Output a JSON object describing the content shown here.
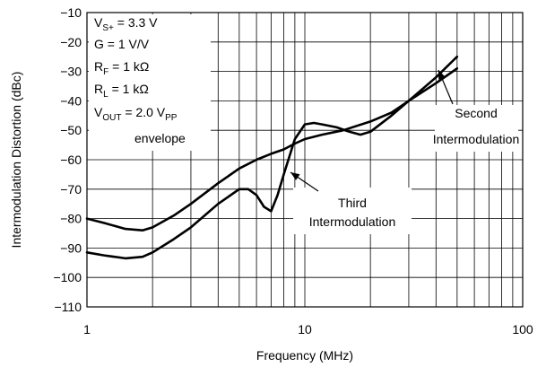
{
  "chart_data": {
    "type": "line",
    "xlabel": "Frequency (MHz)",
    "ylabel": "Intermodulation Distortion (dBc)",
    "x_scale": "log",
    "xlim": [
      1,
      100
    ],
    "ylim": [
      -110,
      -10
    ],
    "grid": true,
    "x_ticks": [
      1,
      10,
      100
    ],
    "y_ticks": [
      -10,
      -20,
      -30,
      -40,
      -50,
      -60,
      -70,
      -80,
      -90,
      -100,
      -110
    ],
    "conditions": [
      {
        "main": "V",
        "sub": "S+",
        "rest": " = 3.3 V"
      },
      {
        "main": "G = 1 V/V",
        "sub": "",
        "rest": ""
      },
      {
        "main": "R",
        "sub": "F",
        "rest": " = 1 kΩ"
      },
      {
        "main": "R",
        "sub": "L",
        "rest": " = 1 kΩ"
      },
      {
        "main": "V",
        "sub": "OUT",
        "rest": " = 2.0 V",
        "sub2": "PP"
      },
      {
        "main": "envelope",
        "sub": "",
        "rest": ""
      }
    ],
    "series": [
      {
        "annotation": [
          "Second",
          "Intermodulation"
        ],
        "x": [
          1,
          1.2,
          1.5,
          1.8,
          2,
          2.5,
          3,
          4,
          5,
          6,
          7,
          8,
          9,
          10,
          12,
          15,
          20,
          25,
          30,
          40,
          50
        ],
        "y": [
          -80,
          -81.5,
          -83.5,
          -84,
          -83,
          -79,
          -75,
          -68,
          -63,
          -60,
          -58,
          -56.5,
          -54.5,
          -53,
          -51.5,
          -50,
          -47,
          -44,
          -40,
          -34,
          -29
        ]
      },
      {
        "annotation": [
          "Third",
          "Intermodulation"
        ],
        "x": [
          1,
          1.2,
          1.5,
          1.8,
          2,
          2.5,
          3,
          4,
          5,
          5.5,
          6,
          6.5,
          7,
          7.5,
          8,
          9,
          10,
          11,
          12,
          14,
          16,
          18,
          20,
          25,
          30,
          40,
          50
        ],
        "y": [
          -91.5,
          -92.5,
          -93.5,
          -93,
          -91.5,
          -87,
          -83,
          -75,
          -70,
          -70,
          -72,
          -76,
          -77.5,
          -72,
          -65,
          -53,
          -48,
          -47.5,
          -48,
          -49,
          -50.5,
          -51.5,
          -50.5,
          -45,
          -40,
          -32,
          -25
        ]
      }
    ]
  }
}
